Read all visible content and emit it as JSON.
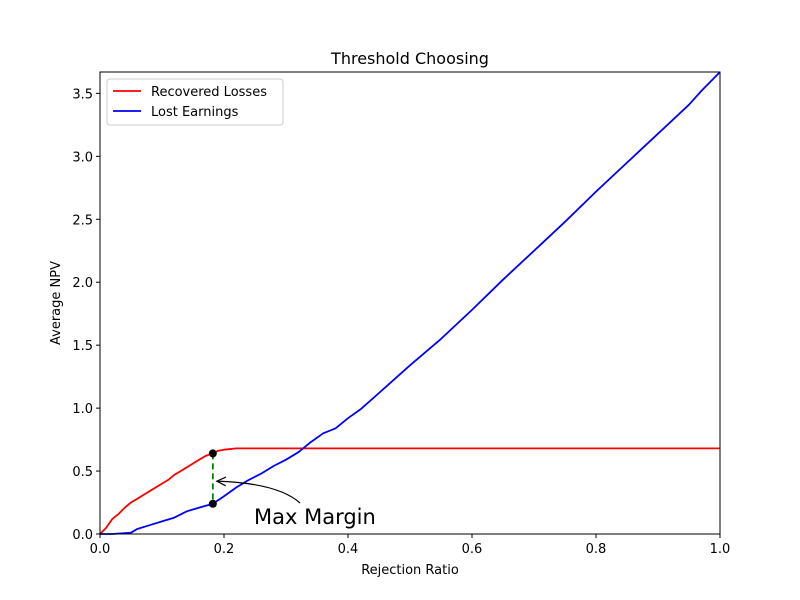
{
  "chart_data": {
    "type": "line",
    "title": "Threshold Choosing",
    "xlabel": "Rejection Ratio",
    "ylabel": "Average NPV",
    "xlim": [
      0.0,
      1.0
    ],
    "ylim": [
      0.0,
      3.67
    ],
    "xticks": [
      "0.0",
      "0.2",
      "0.4",
      "0.6",
      "0.8",
      "1.0"
    ],
    "yticks": [
      "0.0",
      "0.5",
      "1.0",
      "1.5",
      "2.0",
      "2.5",
      "3.0",
      "3.5"
    ],
    "legend_position": "top-left",
    "series": [
      {
        "name": "Recovered Losses",
        "color": "#ff0000",
        "x": [
          0.0,
          0.01,
          0.02,
          0.03,
          0.04,
          0.05,
          0.06,
          0.07,
          0.08,
          0.09,
          0.1,
          0.11,
          0.12,
          0.13,
          0.14,
          0.15,
          0.16,
          0.17,
          0.182,
          0.19,
          0.2,
          0.22,
          0.25,
          0.3,
          0.4,
          0.5,
          0.6,
          0.7,
          0.8,
          0.9,
          1.0
        ],
        "y": [
          0.0,
          0.05,
          0.12,
          0.16,
          0.21,
          0.25,
          0.28,
          0.31,
          0.34,
          0.37,
          0.4,
          0.43,
          0.47,
          0.5,
          0.53,
          0.56,
          0.59,
          0.62,
          0.64,
          0.66,
          0.67,
          0.68,
          0.68,
          0.68,
          0.68,
          0.68,
          0.68,
          0.68,
          0.68,
          0.68,
          0.68
        ]
      },
      {
        "name": "Lost Earnings",
        "color": "#0000ff",
        "x": [
          0.0,
          0.02,
          0.05,
          0.06,
          0.08,
          0.1,
          0.12,
          0.14,
          0.16,
          0.182,
          0.2,
          0.22,
          0.24,
          0.26,
          0.28,
          0.3,
          0.32,
          0.34,
          0.36,
          0.38,
          0.4,
          0.42,
          0.45,
          0.5,
          0.55,
          0.6,
          0.65,
          0.7,
          0.75,
          0.8,
          0.85,
          0.9,
          0.95,
          0.97,
          1.0
        ],
        "y": [
          0.0,
          0.0,
          0.01,
          0.04,
          0.07,
          0.1,
          0.13,
          0.18,
          0.21,
          0.24,
          0.3,
          0.37,
          0.43,
          0.48,
          0.54,
          0.59,
          0.65,
          0.73,
          0.8,
          0.84,
          0.92,
          0.99,
          1.12,
          1.34,
          1.55,
          1.78,
          2.02,
          2.25,
          2.48,
          2.72,
          2.95,
          3.18,
          3.41,
          3.52,
          3.67
        ]
      }
    ],
    "annotation": {
      "text": "Max Margin",
      "x": 0.182,
      "y_top": 0.64,
      "y_bottom": 0.24,
      "text_x": 0.25,
      "text_y": 0.09,
      "arrow_target_y": 0.42,
      "line_color": "#008000",
      "marker_color": "#000000"
    }
  }
}
